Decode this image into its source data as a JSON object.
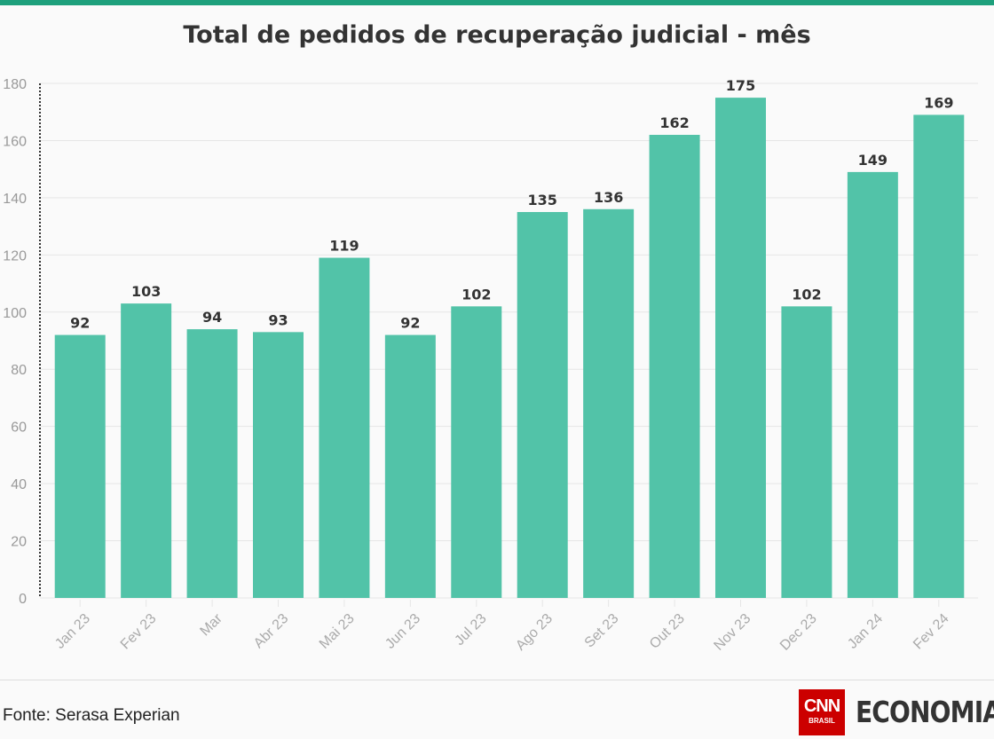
{
  "chart_data": {
    "type": "bar",
    "title": "Total de pedidos de recuperação judicial - mês",
    "categories": [
      "Jan 23",
      "Fev 23",
      "Mar",
      "Abr 23",
      "Mai 23",
      "Jun 23",
      "Jul 23",
      "Ago 23",
      "Set 23",
      "Out 23",
      "Nov 23",
      "Dec 23",
      "Jan 24",
      "Fev 24"
    ],
    "values": [
      92,
      103,
      94,
      93,
      119,
      92,
      102,
      135,
      136,
      162,
      175,
      102,
      149,
      169
    ],
    "xlabel": "",
    "ylabel": "",
    "ylim": [
      0,
      180
    ],
    "yticks": [
      0,
      20,
      40,
      60,
      80,
      100,
      120,
      140,
      160,
      180
    ],
    "grid": true,
    "bar_color": "#52c3a8",
    "accent_color": "#1ea07c",
    "data_labels": true
  },
  "footer": {
    "source": "Fonte: Serasa Experian"
  },
  "logo": {
    "cnn": "CNN",
    "brasil": "BRASIL",
    "economia": "ECONOMIA"
  }
}
